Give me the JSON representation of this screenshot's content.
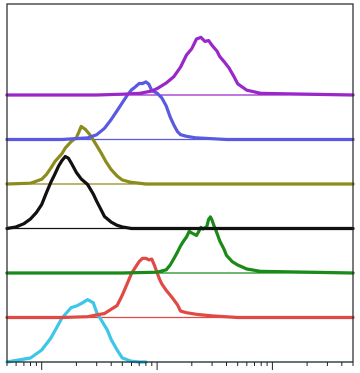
{
  "chart_data": {
    "type": "line",
    "chart_kind": "staggered histogram overlay",
    "x_scale": "log",
    "xlim": [
      0.5,
      500
    ],
    "x_ticks": [
      1,
      10,
      100
    ],
    "grid": false,
    "legend": "none",
    "series": [
      {
        "color": "#3ec6e8",
        "offset": 0,
        "x": [
          0.5,
          0.8,
          1.0,
          1.2,
          1.5,
          1.8,
          2.0,
          2.2,
          2.5,
          2.8,
          3.0,
          3.3,
          3.7,
          4.0,
          4.5,
          5.0,
          6.0,
          7.0,
          8.0
        ],
        "y": [
          0.0,
          0.05,
          0.15,
          0.3,
          0.55,
          0.68,
          0.7,
          0.73,
          0.78,
          0.74,
          0.62,
          0.52,
          0.4,
          0.28,
          0.15,
          0.05,
          0.01,
          0.0,
          0.0
        ]
      },
      {
        "color": "#e04a45",
        "offset": 1,
        "x": [
          0.5,
          1.5,
          2.5,
          3.5,
          4.5,
          5.0,
          5.5,
          6.0,
          6.5,
          7.0,
          7.5,
          8.0,
          8.5,
          9.0,
          9.5,
          10.0,
          10.5,
          11.0,
          12.0,
          13.0,
          14.0,
          15.0,
          16.0,
          18.0,
          22.0,
          30.0,
          50.0,
          100.0,
          500.0
        ],
        "y": [
          0.0,
          0.0,
          0.01,
          0.05,
          0.15,
          0.28,
          0.42,
          0.55,
          0.63,
          0.7,
          0.74,
          0.74,
          0.72,
          0.73,
          0.65,
          0.56,
          0.48,
          0.42,
          0.34,
          0.28,
          0.22,
          0.16,
          0.08,
          0.06,
          0.04,
          0.02,
          0.0,
          0.0,
          0.0
        ]
      },
      {
        "color": "#1a8a1a",
        "offset": 2,
        "x": [
          0.5,
          5.0,
          10.0,
          12.0,
          13.0,
          14.0,
          15.0,
          16.0,
          17.0,
          18.0,
          19.0,
          20.0,
          22.0,
          23.0,
          24.0,
          25.0,
          27.0,
          28.0,
          29.0,
          30.0,
          31.0,
          33.0,
          35.0,
          38.0,
          40.0,
          45.0,
          50.0,
          60.0,
          80.0,
          500.0
        ],
        "y": [
          0.0,
          0.0,
          0.01,
          0.04,
          0.1,
          0.18,
          0.26,
          0.34,
          0.4,
          0.45,
          0.52,
          0.5,
          0.47,
          0.52,
          0.57,
          0.55,
          0.58,
          0.67,
          0.7,
          0.66,
          0.6,
          0.5,
          0.4,
          0.3,
          0.22,
          0.14,
          0.1,
          0.05,
          0.02,
          0.0
        ]
      },
      {
        "color": "#111111",
        "offset": 3,
        "x": [
          0.5,
          0.6,
          0.7,
          0.8,
          0.9,
          1.0,
          1.1,
          1.2,
          1.3,
          1.4,
          1.5,
          1.6,
          1.7,
          1.8,
          2.0,
          2.2,
          2.5,
          2.8,
          3.0,
          3.2,
          3.5,
          4.0,
          4.5,
          5.0,
          6.0,
          7.0,
          10.0,
          500.0
        ],
        "y": [
          0.0,
          0.02,
          0.06,
          0.12,
          0.2,
          0.3,
          0.45,
          0.58,
          0.68,
          0.78,
          0.85,
          0.9,
          0.88,
          0.82,
          0.7,
          0.62,
          0.55,
          0.43,
          0.34,
          0.26,
          0.15,
          0.08,
          0.04,
          0.02,
          0.0,
          0.0,
          0.0,
          0.0
        ]
      },
      {
        "color": "#8c8c1e",
        "offset": 4,
        "x": [
          0.5,
          0.8,
          1.0,
          1.1,
          1.2,
          1.3,
          1.5,
          1.6,
          1.8,
          2.0,
          2.1,
          2.2,
          2.4,
          2.6,
          2.8,
          3.0,
          3.3,
          3.6,
          4.0,
          4.5,
          5.0,
          6.0,
          8.0,
          500.0
        ],
        "y": [
          0.0,
          0.01,
          0.06,
          0.12,
          0.2,
          0.28,
          0.38,
          0.45,
          0.53,
          0.58,
          0.65,
          0.72,
          0.68,
          0.62,
          0.55,
          0.48,
          0.38,
          0.28,
          0.18,
          0.1,
          0.05,
          0.02,
          0.0,
          0.0
        ]
      },
      {
        "color": "#5a5ae0",
        "offset": 5,
        "x": [
          0.5,
          1.5,
          2.5,
          3.0,
          3.5,
          4.0,
          4.5,
          5.0,
          5.5,
          6.0,
          6.5,
          7.0,
          7.5,
          8.0,
          8.5,
          9.0,
          10.0,
          11.0,
          12.0,
          13.0,
          14.0,
          15.0,
          16.0,
          18.0,
          22.0,
          30.0,
          40.0,
          500.0
        ],
        "y": [
          0.0,
          0.0,
          0.02,
          0.06,
          0.14,
          0.25,
          0.36,
          0.46,
          0.55,
          0.62,
          0.66,
          0.7,
          0.7,
          0.72,
          0.69,
          0.61,
          0.58,
          0.52,
          0.42,
          0.28,
          0.18,
          0.1,
          0.06,
          0.04,
          0.02,
          0.01,
          0.0,
          0.0
        ]
      },
      {
        "color": "#9a28c8",
        "offset": 6,
        "x": [
          0.5,
          3.0,
          5.0,
          7.0,
          9.0,
          10.0,
          12.0,
          14.0,
          16.0,
          18.0,
          20.0,
          22.0,
          24.0,
          26.0,
          28.0,
          30.0,
          33.0,
          35.0,
          38.0,
          42.0,
          46.0,
          50.0,
          60.0,
          80.0,
          500.0
        ],
        "y": [
          0.0,
          0.0,
          0.01,
          0.02,
          0.05,
          0.08,
          0.15,
          0.23,
          0.35,
          0.5,
          0.58,
          0.7,
          0.72,
          0.67,
          0.68,
          0.62,
          0.55,
          0.48,
          0.42,
          0.34,
          0.24,
          0.14,
          0.06,
          0.02,
          0.0
        ]
      }
    ]
  }
}
